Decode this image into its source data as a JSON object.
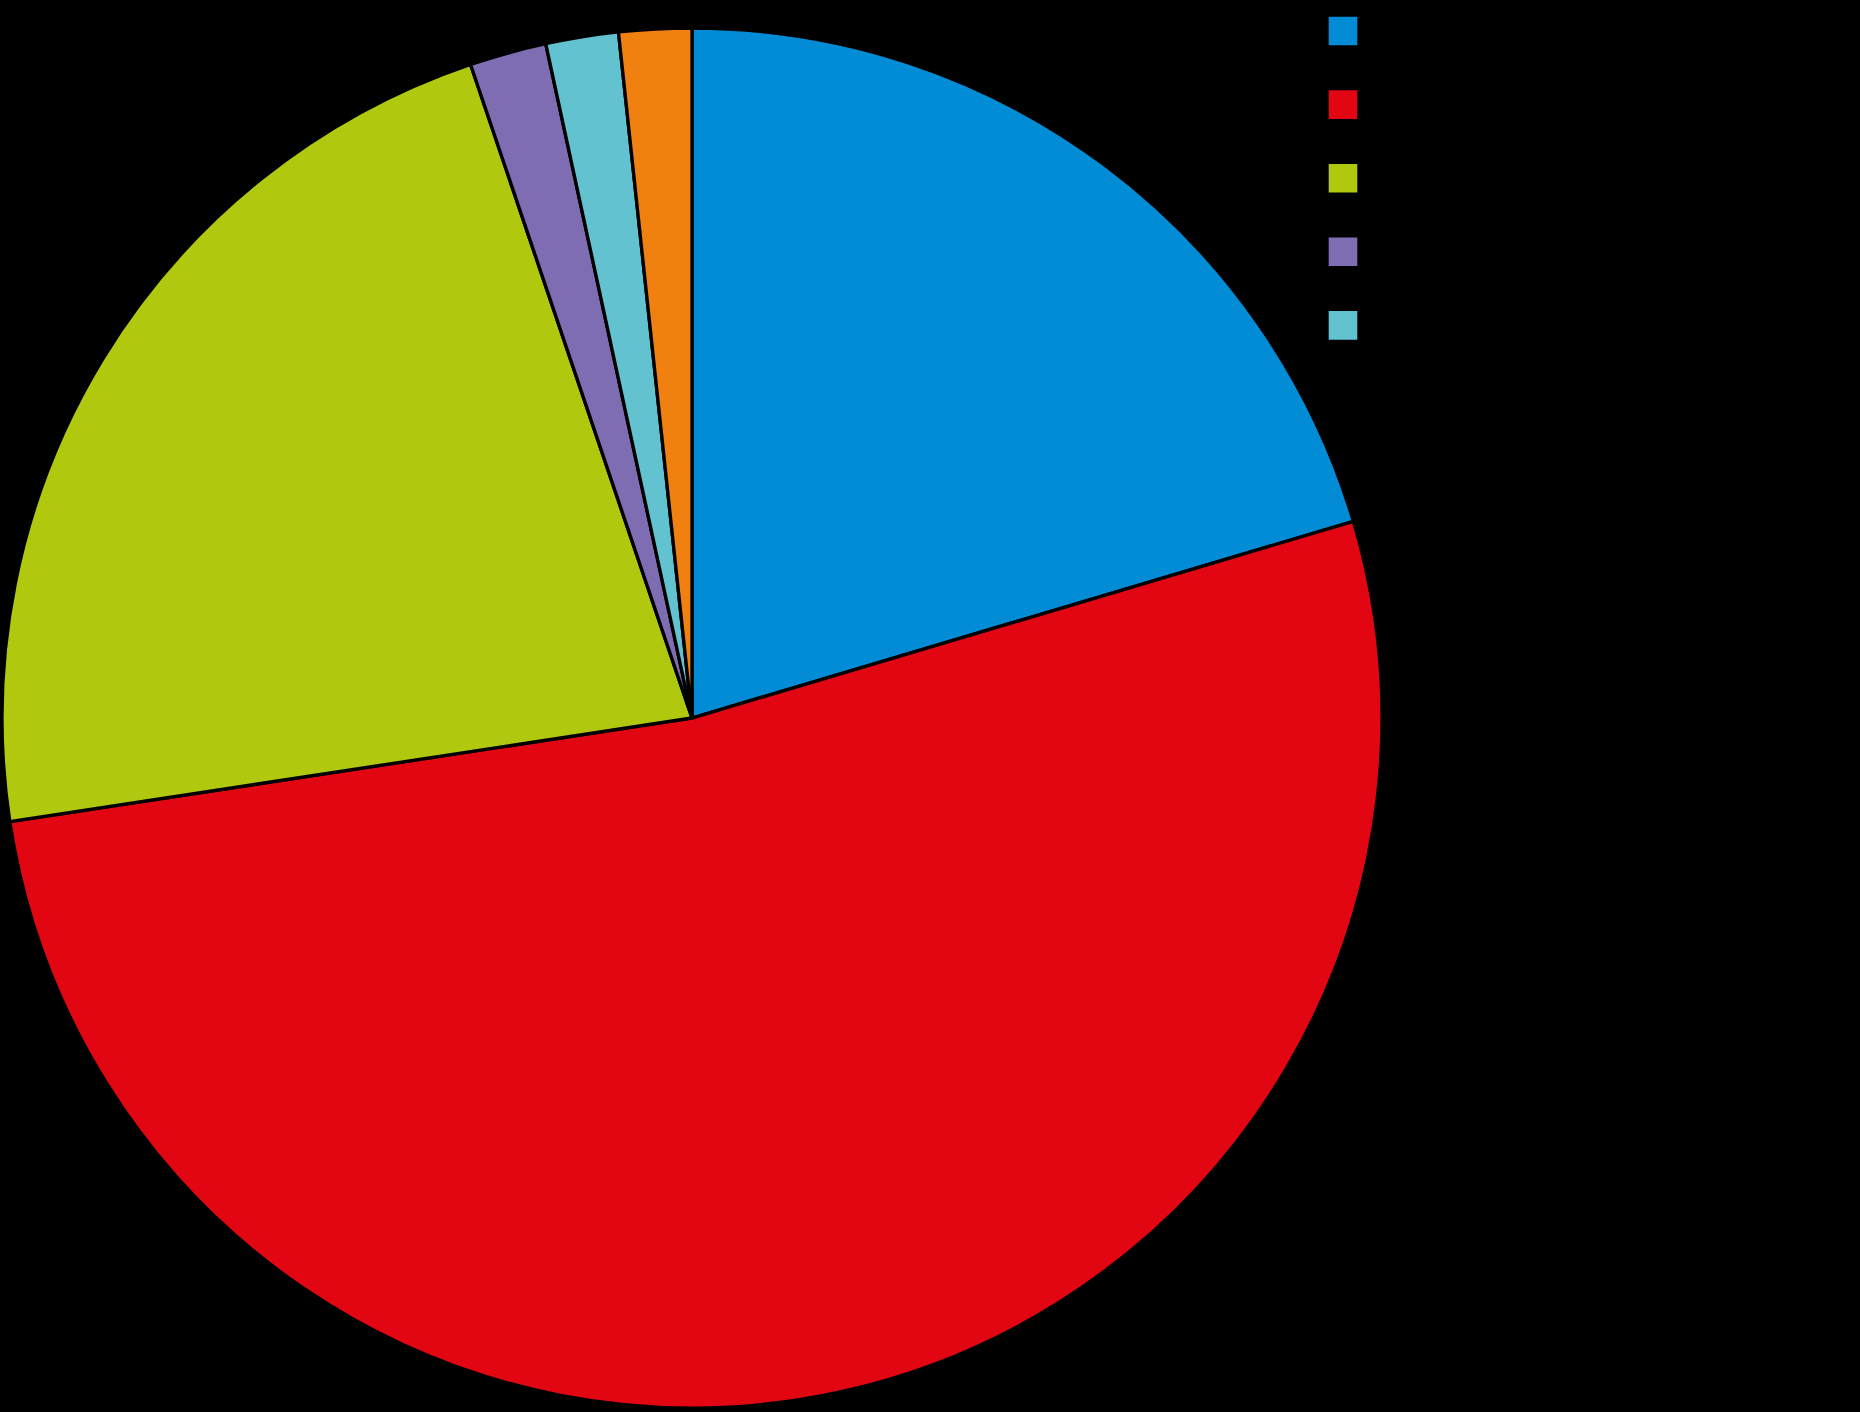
{
  "chart_data": {
    "type": "pie",
    "categories": [
      null,
      null,
      null,
      null,
      null,
      null
    ],
    "values": [
      20.4,
      52.2,
      22.2,
      1.8,
      1.7,
      1.7
    ],
    "colors": [
      "#028cd6",
      "#e20613",
      "#b0c80e",
      "#7f6db3",
      "#62c2d0",
      "#f08010"
    ]
  }
}
